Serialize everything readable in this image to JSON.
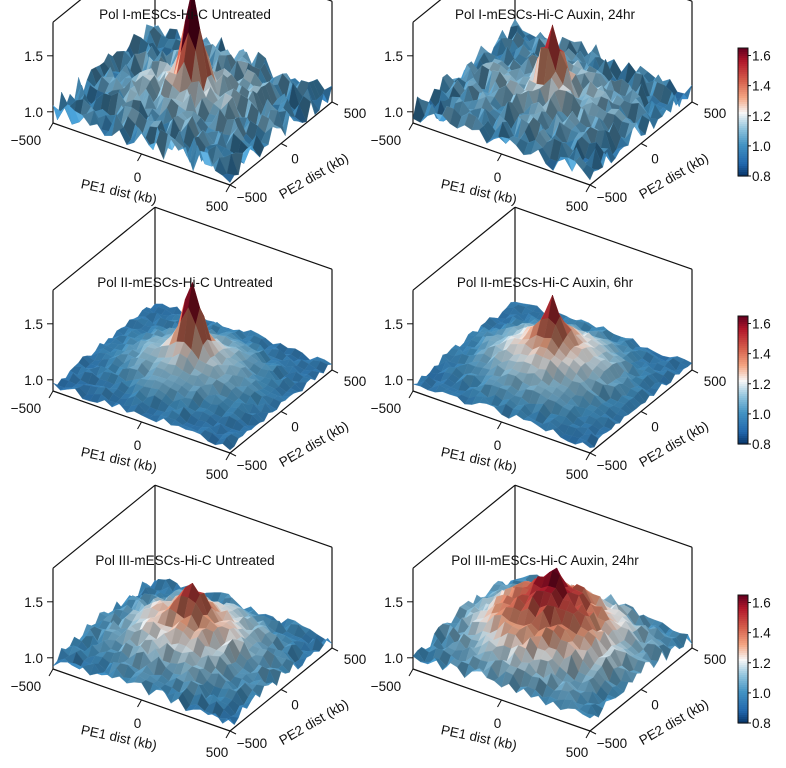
{
  "chart_data": [
    {
      "type": "surface3d",
      "title": "Pol I-mESCs-Hi-C Untreated",
      "xlabel": "PE1 dist (kb)",
      "ylabel": "PE2 dist (kb)",
      "x_ticks": [
        "−500",
        "0",
        "500"
      ],
      "y_ticks": [
        "−500",
        "0",
        "500"
      ],
      "z_ticks": [
        "1.0",
        "1.5"
      ],
      "x_range": [
        -500,
        500
      ],
      "y_range": [
        -500,
        500
      ],
      "z_range": [
        0.9,
        1.8
      ],
      "surface": {
        "grid": 25,
        "base": 1.0,
        "center_peak": 0.75,
        "broad_amp": 0.18,
        "spread_kb": 250,
        "noise": 0.22,
        "seed": 11
      },
      "colorbar": null
    },
    {
      "type": "surface3d",
      "title": "Pol I-mESCs-Hi-C Auxin, 24hr",
      "xlabel": "PE1 dist (kb)",
      "ylabel": "PE2 dist (kb)",
      "x_ticks": [
        "−500",
        "0",
        "500"
      ],
      "y_ticks": [
        "−500",
        "0",
        "500"
      ],
      "z_ticks": [
        "1.0",
        "1.5"
      ],
      "x_range": [
        -500,
        500
      ],
      "y_range": [
        -500,
        500
      ],
      "z_range": [
        0.9,
        1.8
      ],
      "surface": {
        "grid": 25,
        "base": 1.0,
        "center_peak": 0.6,
        "broad_amp": 0.16,
        "spread_kb": 250,
        "noise": 0.2,
        "seed": 23
      },
      "colorbar": {
        "ticks": [
          "0.8",
          "1.0",
          "1.2",
          "1.4",
          "1.6"
        ],
        "min": 0.8,
        "max": 1.65,
        "colormap": "RdBu_r"
      }
    },
    {
      "type": "surface3d",
      "title": "Pol II-mESCs-Hi-C Untreated",
      "xlabel": "PE1 dist (kb)",
      "ylabel": "PE2 dist (kb)",
      "x_ticks": [
        "−500",
        "0",
        "500"
      ],
      "y_ticks": [
        "−500",
        "0",
        "500"
      ],
      "z_ticks": [
        "1.0",
        "1.5"
      ],
      "x_range": [
        -500,
        500
      ],
      "y_range": [
        -500,
        500
      ],
      "z_range": [
        0.9,
        1.8
      ],
      "surface": {
        "grid": 25,
        "base": 0.95,
        "center_peak": 0.55,
        "broad_amp": 0.28,
        "spread_kb": 220,
        "noise": 0.07,
        "seed": 37
      },
      "colorbar": null
    },
    {
      "type": "surface3d",
      "title": "Pol II-mESCs-Hi-C Auxin, 6hr",
      "xlabel": "PE1 dist (kb)",
      "ylabel": "PE2 dist (kb)",
      "x_ticks": [
        "−500",
        "0",
        "500"
      ],
      "y_ticks": [
        "−500",
        "0",
        "500"
      ],
      "z_ticks": [
        "1.0",
        "1.5"
      ],
      "x_range": [
        -500,
        500
      ],
      "y_range": [
        -500,
        500
      ],
      "z_range": [
        0.9,
        1.8
      ],
      "surface": {
        "grid": 25,
        "base": 0.95,
        "center_peak": 0.3,
        "broad_amp": 0.38,
        "spread_kb": 230,
        "noise": 0.07,
        "seed": 41
      },
      "colorbar": {
        "ticks": [
          "0.8",
          "1.0",
          "1.2",
          "1.4",
          "1.6"
        ],
        "min": 0.8,
        "max": 1.65,
        "colormap": "RdBu_r"
      }
    },
    {
      "type": "surface3d",
      "title": "Pol III-mESCs-Hi-C Untreated",
      "xlabel": "PE1 dist (kb)",
      "ylabel": "PE2 dist (kb)",
      "x_ticks": [
        "−500",
        "0",
        "500"
      ],
      "y_ticks": [
        "−500",
        "0",
        "500"
      ],
      "z_ticks": [
        "1.0",
        "1.5"
      ],
      "x_range": [
        -500,
        500
      ],
      "y_range": [
        -500,
        500
      ],
      "z_range": [
        0.9,
        1.8
      ],
      "surface": {
        "grid": 25,
        "base": 0.97,
        "center_peak": 0.2,
        "broad_amp": 0.38,
        "spread_kb": 240,
        "noise": 0.11,
        "seed": 53
      },
      "colorbar": null
    },
    {
      "type": "surface3d",
      "title": "Pol III-mESCs-Hi-C Auxin, 24hr",
      "xlabel": "PE1 dist (kb)",
      "ylabel": "PE2 dist (kb)",
      "x_ticks": [
        "−500",
        "0",
        "500"
      ],
      "y_ticks": [
        "−500",
        "0",
        "500"
      ],
      "z_ticks": [
        "1.0",
        "1.5"
      ],
      "x_range": [
        -500,
        500
      ],
      "y_range": [
        -500,
        500
      ],
      "z_range": [
        0.9,
        1.8
      ],
      "surface": {
        "grid": 25,
        "base": 0.98,
        "center_peak": 0.15,
        "broad_amp": 0.55,
        "spread_kb": 260,
        "noise": 0.12,
        "seed": 67
      },
      "colorbar": {
        "ticks": [
          "0.8",
          "1.0",
          "1.2",
          "1.4",
          "1.6"
        ],
        "min": 0.8,
        "max": 1.65,
        "colormap": "RdBu_r"
      }
    }
  ]
}
